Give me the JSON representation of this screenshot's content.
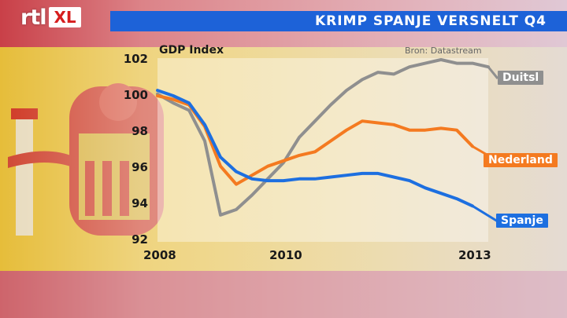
{
  "broadcaster": {
    "rtl": "rtl",
    "xl": "XL"
  },
  "header": {
    "title": "KRIMP SPANJE VERSNELT Q4"
  },
  "colors": {
    "title_bar": "#1d62d8",
    "Duitsl": "#8f8f8f",
    "Nederland": "#f47a20",
    "Spanje": "#1d6fe0"
  },
  "chart_data": {
    "type": "line",
    "title": "",
    "ylabel": "GDP Index",
    "source": "Bron: Datastream",
    "ylim": [
      92,
      102
    ],
    "yticks": [
      "102",
      "100",
      "98",
      "96",
      "94",
      "92"
    ],
    "xlim": [
      2008.0,
      2013.25
    ],
    "xticks": [
      "2008",
      "2010",
      "2013"
    ],
    "grid": false,
    "series": [
      {
        "name": "Duitsl",
        "label_style": "end-tag",
        "x": [
          2008.0,
          2008.25,
          2008.5,
          2008.75,
          2009.0,
          2009.25,
          2009.5,
          2009.75,
          2010.0,
          2010.25,
          2010.5,
          2010.75,
          2011.0,
          2011.25,
          2011.5,
          2011.75,
          2012.0,
          2012.25,
          2012.5,
          2012.75,
          2013.0,
          2013.25
        ],
        "values": [
          100.1,
          99.6,
          99.2,
          97.5,
          93.4,
          93.7,
          94.5,
          95.4,
          96.3,
          97.7,
          98.6,
          99.5,
          100.3,
          100.9,
          101.3,
          101.2,
          101.6,
          101.8,
          102.0,
          101.8,
          101.8,
          101.6
        ]
      },
      {
        "name": "Nederland",
        "label_style": "end-tag",
        "x": [
          2008.0,
          2008.25,
          2008.5,
          2008.75,
          2009.0,
          2009.25,
          2009.5,
          2009.75,
          2010.0,
          2010.25,
          2010.5,
          2010.75,
          2011.0,
          2011.25,
          2011.5,
          2011.75,
          2012.0,
          2012.25,
          2012.5,
          2012.75,
          2013.0
        ],
        "values": [
          100.0,
          99.8,
          99.5,
          98.3,
          96.1,
          95.1,
          95.6,
          96.1,
          96.4,
          96.7,
          96.9,
          97.5,
          98.1,
          98.6,
          98.5,
          98.4,
          98.1,
          98.1,
          98.2,
          98.1,
          97.2
        ]
      },
      {
        "name": "Spanje",
        "label_style": "end-tag",
        "x": [
          2008.0,
          2008.25,
          2008.5,
          2008.75,
          2009.0,
          2009.25,
          2009.5,
          2009.75,
          2010.0,
          2010.25,
          2010.5,
          2010.75,
          2011.0,
          2011.25,
          2011.5,
          2011.75,
          2012.0,
          2012.25,
          2012.5,
          2012.75,
          2013.0
        ],
        "values": [
          100.3,
          100.0,
          99.6,
          98.4,
          96.6,
          95.8,
          95.4,
          95.3,
          95.3,
          95.4,
          95.4,
          95.5,
          95.6,
          95.7,
          95.7,
          95.5,
          95.3,
          94.9,
          94.6,
          94.3,
          93.9
        ]
      }
    ]
  }
}
